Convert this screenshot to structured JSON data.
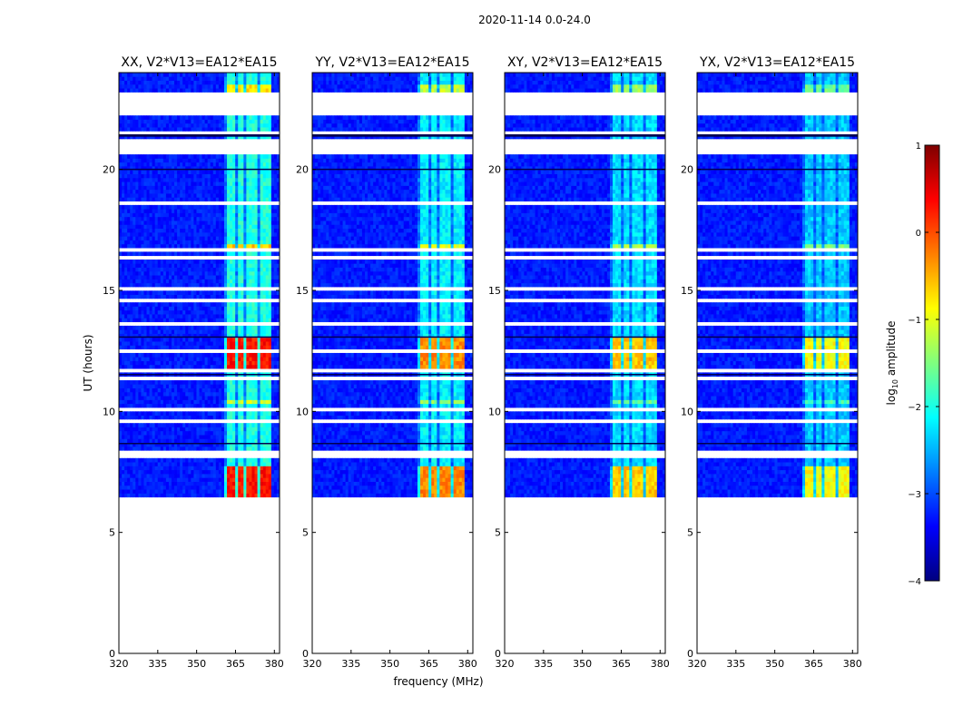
{
  "figure": {
    "suptitle": "2020-11-14 0.0-24.0",
    "xlabel": "frequency (MHz)",
    "ylabel": "UT (hours)"
  },
  "chart_data": {
    "type": "heatmap",
    "title": "2020-11-14 0.0-24.0",
    "xlabel": "frequency (MHz)",
    "ylabel": "UT (hours)",
    "xlim": [
      320,
      382
    ],
    "ylim": [
      0,
      24
    ],
    "x_ticks": [
      320,
      335,
      350,
      365,
      380
    ],
    "y_ticks": [
      0,
      5,
      10,
      15,
      20
    ],
    "data_time_range": [
      6.3,
      24
    ],
    "rfi_band_mhz": [
      361,
      379
    ],
    "rfi_channels_mhz": [
      [
        361.5,
        364.5
      ],
      [
        365.5,
        368.5
      ],
      [
        369.5,
        373.0
      ],
      [
        374.0,
        378.5
      ]
    ],
    "gaps_ut": [
      [
        6.35,
        6.45
      ],
      [
        6.75,
        6.8
      ],
      [
        7.05,
        7.1
      ],
      [
        7.4,
        7.45
      ],
      [
        7.75,
        7.8
      ],
      [
        8.0,
        8.4
      ],
      [
        8.9,
        8.95
      ],
      [
        9.45,
        9.75
      ],
      [
        10.0,
        10.1
      ],
      [
        10.45,
        10.5
      ],
      [
        10.75,
        10.8
      ],
      [
        11.05,
        11.1
      ],
      [
        11.35,
        11.4
      ],
      [
        11.65,
        11.75
      ],
      [
        12.45,
        12.55
      ],
      [
        13.6,
        13.65
      ],
      [
        14.05,
        14.1
      ],
      [
        14.55,
        14.65
      ],
      [
        14.95,
        15.15
      ],
      [
        16.05,
        16.1
      ],
      [
        16.35,
        16.4
      ],
      [
        16.6,
        16.7
      ],
      [
        16.85,
        16.95
      ],
      [
        17.25,
        17.3
      ],
      [
        17.55,
        17.6
      ],
      [
        18.6,
        18.65
      ],
      [
        19.35,
        19.4
      ],
      [
        19.8,
        19.85
      ],
      [
        20.6,
        21.3
      ],
      [
        21.5,
        21.6
      ],
      [
        22.3,
        23.2
      ]
    ],
    "panels": [
      {
        "title": "XX, V2*V13=EA12*EA15",
        "peak_log_amplitude": 0.3
      },
      {
        "title": "YY, V2*V13=EA12*EA15",
        "peak_log_amplitude": -0.3
      },
      {
        "title": "XY, V2*V13=EA12*EA15",
        "peak_log_amplitude": -0.6
      },
      {
        "title": "YX, V2*V13=EA12*EA15",
        "peak_log_amplitude": -0.9
      }
    ],
    "colorbar": {
      "label": "log10 amplitude",
      "label_main": "log",
      "label_sub": "10",
      "label_rest": " amplitude",
      "range": [
        -4,
        1
      ],
      "ticks": [
        -4,
        -3,
        -2,
        -1,
        0,
        1
      ],
      "tick_labels": [
        "−4",
        "−3",
        "−2",
        "−1",
        "0",
        "1"
      ],
      "colormap": "jet",
      "colormap_stops": [
        "#00007f",
        "#0000ff",
        "#007fff",
        "#00ffff",
        "#7fff7f",
        "#ffff00",
        "#ff7f00",
        "#ff0000",
        "#7f0000"
      ]
    }
  }
}
